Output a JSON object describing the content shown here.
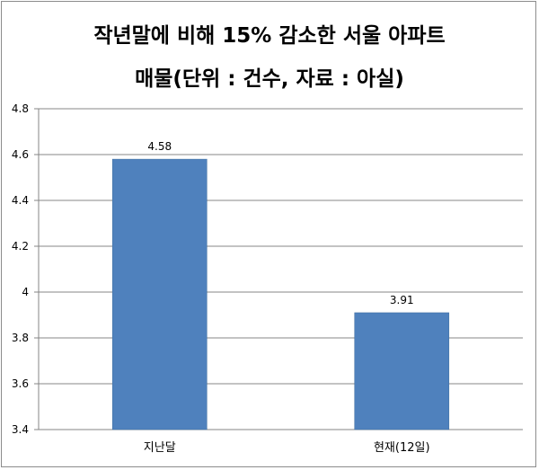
{
  "chart_data": {
    "type": "bar",
    "title_lines": [
      "작년말에 비해 15% 감소한 서울 아파트",
      "매물(단위 : 건수, 자료 : 아실)"
    ],
    "categories": [
      "지난달",
      "현재(12일)"
    ],
    "values": [
      4.58,
      3.91
    ],
    "data_labels": [
      "4.58",
      "3.91"
    ],
    "ylim": [
      3.4,
      4.8
    ],
    "yticks": [
      "3.4",
      "3.6",
      "3.8",
      "4",
      "4.2",
      "4.4",
      "4.6",
      "4.8"
    ],
    "grid": true,
    "legend": "none",
    "colors": {
      "bar": "#4f81bd",
      "bar_edge": "#3e6d9f",
      "grid": "#878787",
      "axis": "#868686"
    }
  }
}
